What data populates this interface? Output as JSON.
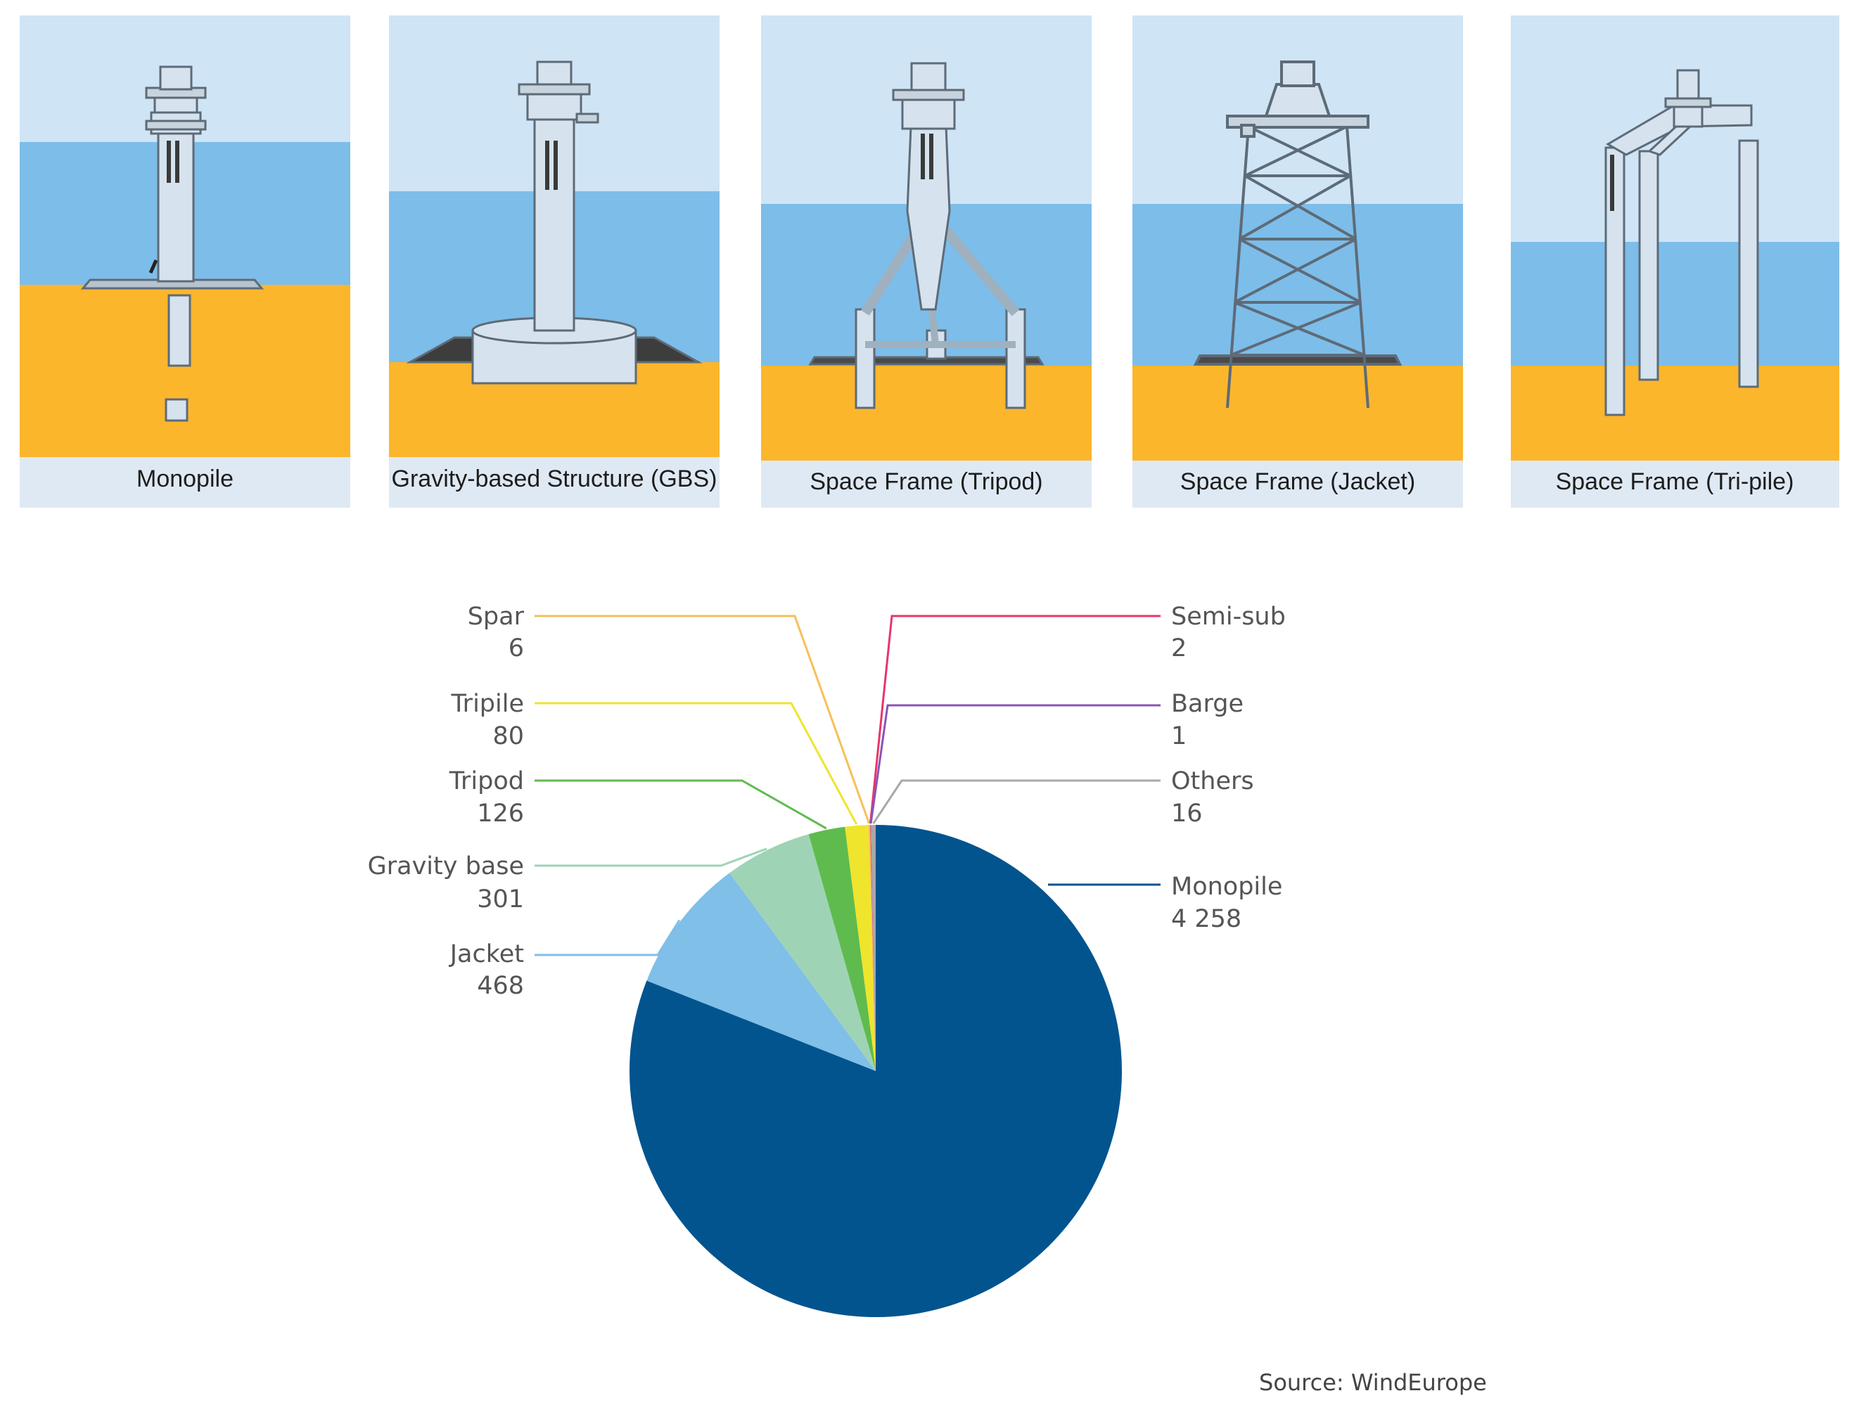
{
  "foundation_panels": [
    {
      "caption": "Monopile",
      "icon": "monopile-foundation-icon"
    },
    {
      "caption": "Gravity-based Structure (GBS)",
      "icon": "gravity-based-structure-icon"
    },
    {
      "caption": "Space Frame (Tripod)",
      "icon": "tripod-foundation-icon"
    },
    {
      "caption": "Space Frame (Jacket)",
      "icon": "jacket-foundation-icon"
    },
    {
      "caption": "Space Frame (Tri-pile)",
      "icon": "tri-pile-foundation-icon"
    }
  ],
  "colors": {
    "sky": "#cfe4f5",
    "water": "#7dbde9",
    "seabed": "#fbb62c",
    "caption_band": "#dfe9f4",
    "structure": "#d6e3ee",
    "structure_edge": "#5d6b78"
  },
  "chart_data": {
    "type": "pie",
    "slices": [
      {
        "label": "Monopile",
        "value": 4258,
        "value_text": "4 258",
        "color": "#02548f"
      },
      {
        "label": "Jacket",
        "value": 468,
        "value_text": "468",
        "color": "#7fbfe8"
      },
      {
        "label": "Gravity base",
        "value": 301,
        "value_text": "301",
        "color": "#9fd3b6"
      },
      {
        "label": "Tripod",
        "value": 126,
        "value_text": "126",
        "color": "#5fbb4e"
      },
      {
        "label": "Tripile",
        "value": 80,
        "value_text": "80",
        "color": "#efe52c"
      },
      {
        "label": "Spar",
        "value": 6,
        "value_text": "6",
        "color": "#f6c05a"
      },
      {
        "label": "Semi-sub",
        "value": 2,
        "value_text": "2",
        "color": "#e8356a"
      },
      {
        "label": "Barge",
        "value": 1,
        "value_text": "1",
        "color": "#8a55b5"
      },
      {
        "label": "Others",
        "value": 16,
        "value_text": "16",
        "color": "#a8a8a8"
      }
    ],
    "start_angle_deg": 0,
    "direction": "clockwise"
  },
  "source": "Source: WindEurope"
}
